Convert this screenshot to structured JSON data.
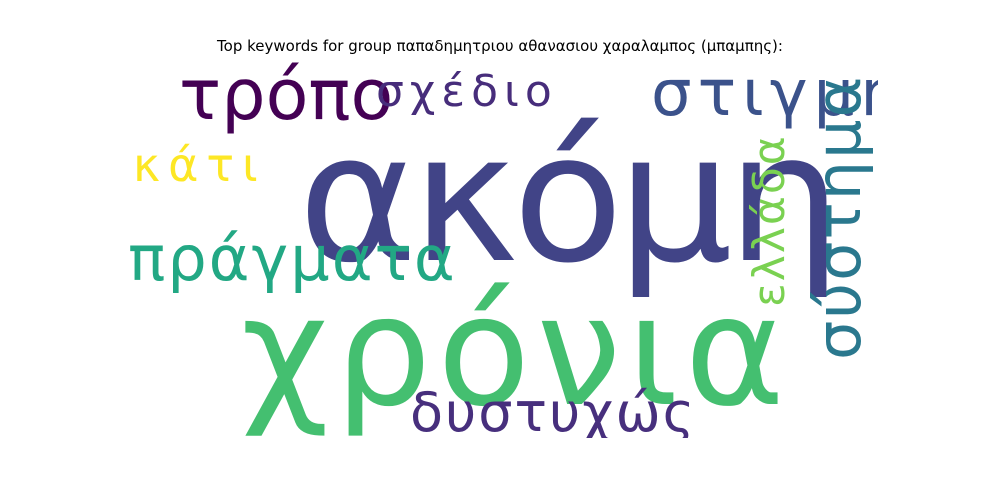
{
  "title": "Top keywords for group παπαδημητριου αθανασιου χαραλαμπος (μπαμπης):",
  "words": {
    "akomi": {
      "text": "ακόμη",
      "color": "#414487"
    },
    "xronia": {
      "text": "χρόνια",
      "color": "#44bf70"
    },
    "tropo": {
      "text": "τρόπο",
      "color": "#440154"
    },
    "sxedio": {
      "text": "σχέδιο",
      "color": "#472d7b"
    },
    "stigmi": {
      "text": "στιγμή",
      "color": "#3b528b"
    },
    "kati": {
      "text": "κάτι",
      "color": "#fde725"
    },
    "pragmata": {
      "text": "πράγματα",
      "color": "#22a884"
    },
    "dystyxws": {
      "text": "δυστυχώς",
      "color": "#472f7d"
    },
    "ellada": {
      "text": "ελλάδα",
      "color": "#7ad151"
    },
    "systima": {
      "text": "σύστημα",
      "color": "#2a788e"
    }
  }
}
